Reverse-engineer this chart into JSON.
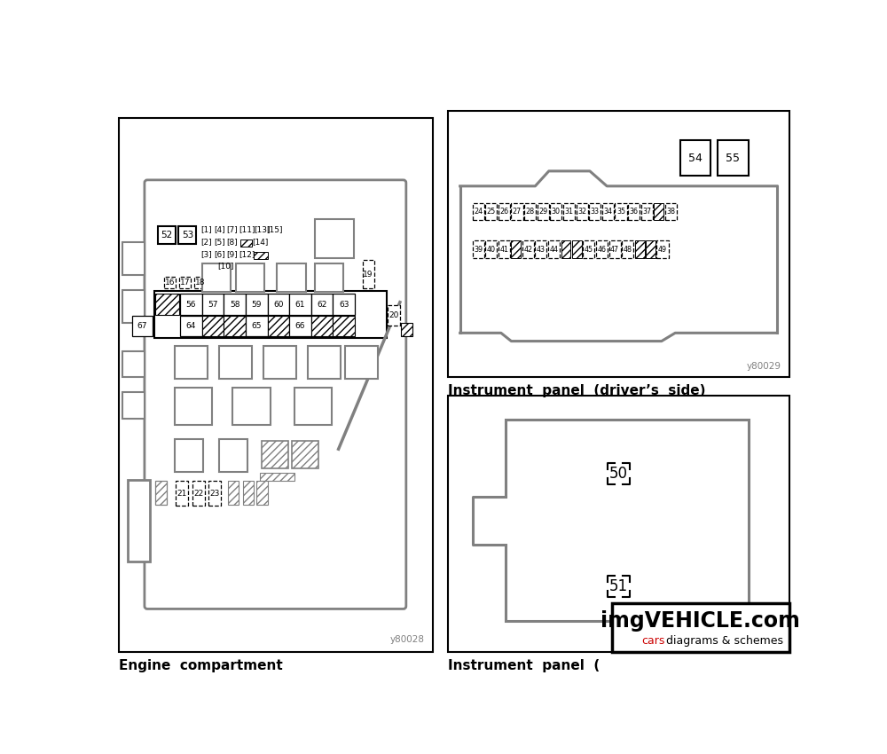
{
  "bg_color": "#ffffff",
  "border_color": "#000000",
  "gray_color": "#808080",
  "panel1_title": "Engine  compartment",
  "panel2_title": "Instrument  panel  (driver’s  side)",
  "panel3_title": "Instrument  panel  (",
  "ref1": "y80028",
  "ref2": "y80029",
  "watermark_line1": "imgVEHICLE.com",
  "watermark_line2": "cars diagrams & schemes",
  "watermark_color_main": "#000000",
  "watermark_color_cars": "#cc0000"
}
